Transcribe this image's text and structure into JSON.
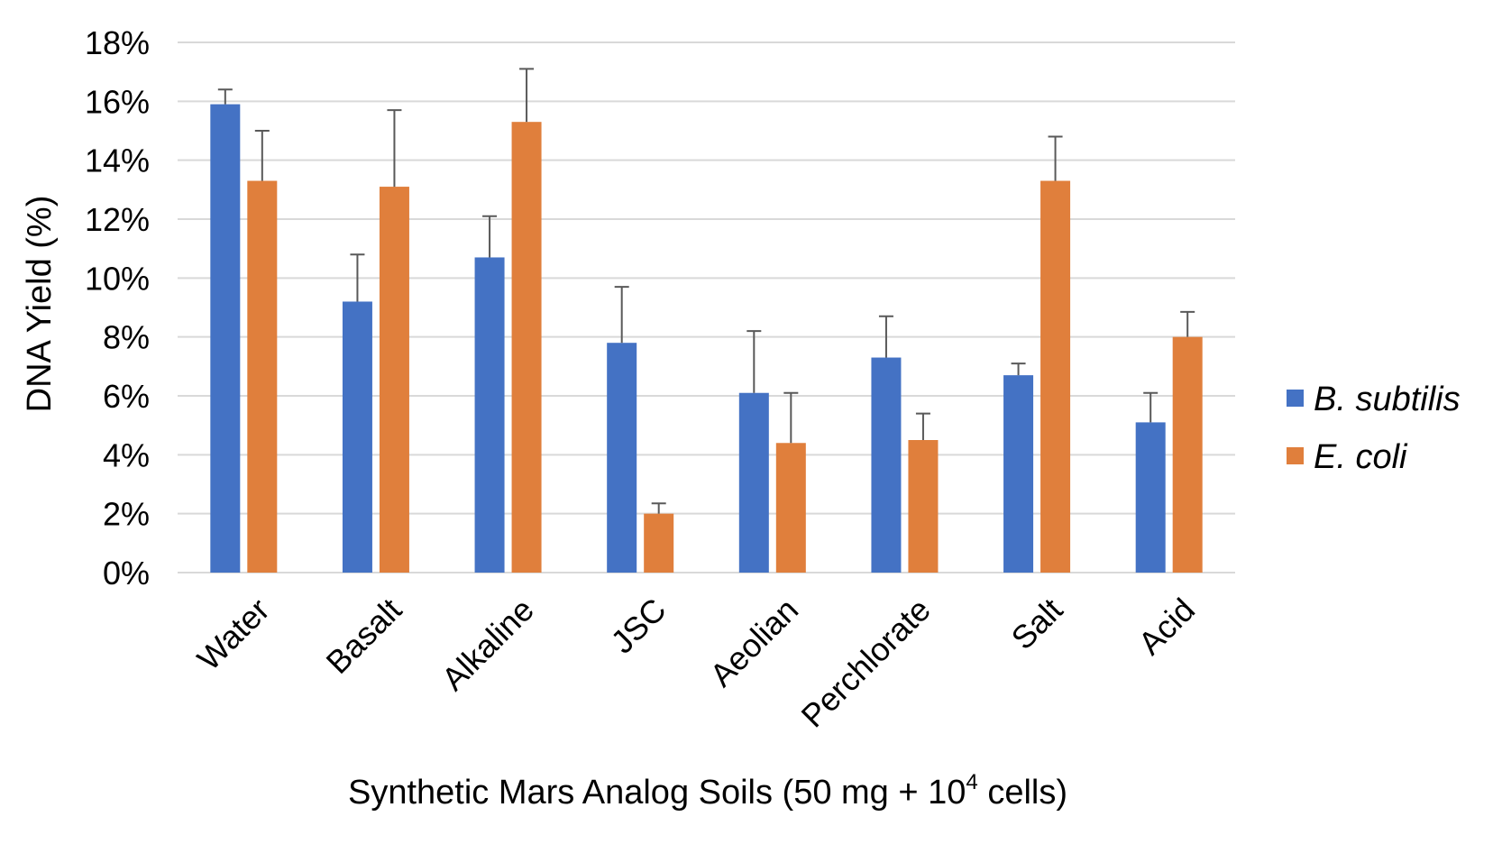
{
  "chart_data": {
    "type": "bar",
    "title": "",
    "xlabel": "Synthetic Mars Analog Soils (50 mg + 10",
    "xlabel_superscript": "4",
    "xlabel_suffix": " cells)",
    "ylabel": "DNA Yield (%)",
    "ylim": [
      0,
      18
    ],
    "yticks": [
      0,
      2,
      4,
      6,
      8,
      10,
      12,
      14,
      16,
      18
    ],
    "ytick_labels": [
      "0%",
      "2%",
      "4%",
      "6%",
      "8%",
      "10%",
      "12%",
      "14%",
      "16%",
      "18%"
    ],
    "grid": true,
    "legend_position": "right",
    "categories": [
      "Water",
      "Basalt",
      "Alkaline",
      "JSC",
      "Aeolian",
      "Perchlorate",
      "Salt",
      "Acid"
    ],
    "series": [
      {
        "name": "B. subtilis",
        "color": "#4472c4",
        "values": [
          15.9,
          9.2,
          10.7,
          7.8,
          6.1,
          7.3,
          6.7,
          5.1
        ],
        "errors": [
          0.5,
          1.6,
          1.4,
          1.9,
          2.1,
          1.4,
          0.4,
          1.0
        ]
      },
      {
        "name": "E. coli",
        "color": "#e07f3c",
        "values": [
          13.3,
          13.1,
          15.3,
          2.0,
          4.4,
          4.5,
          13.3,
          8.0
        ],
        "errors": [
          1.7,
          2.6,
          1.8,
          0.35,
          1.7,
          0.9,
          1.5,
          0.85
        ]
      }
    ]
  }
}
